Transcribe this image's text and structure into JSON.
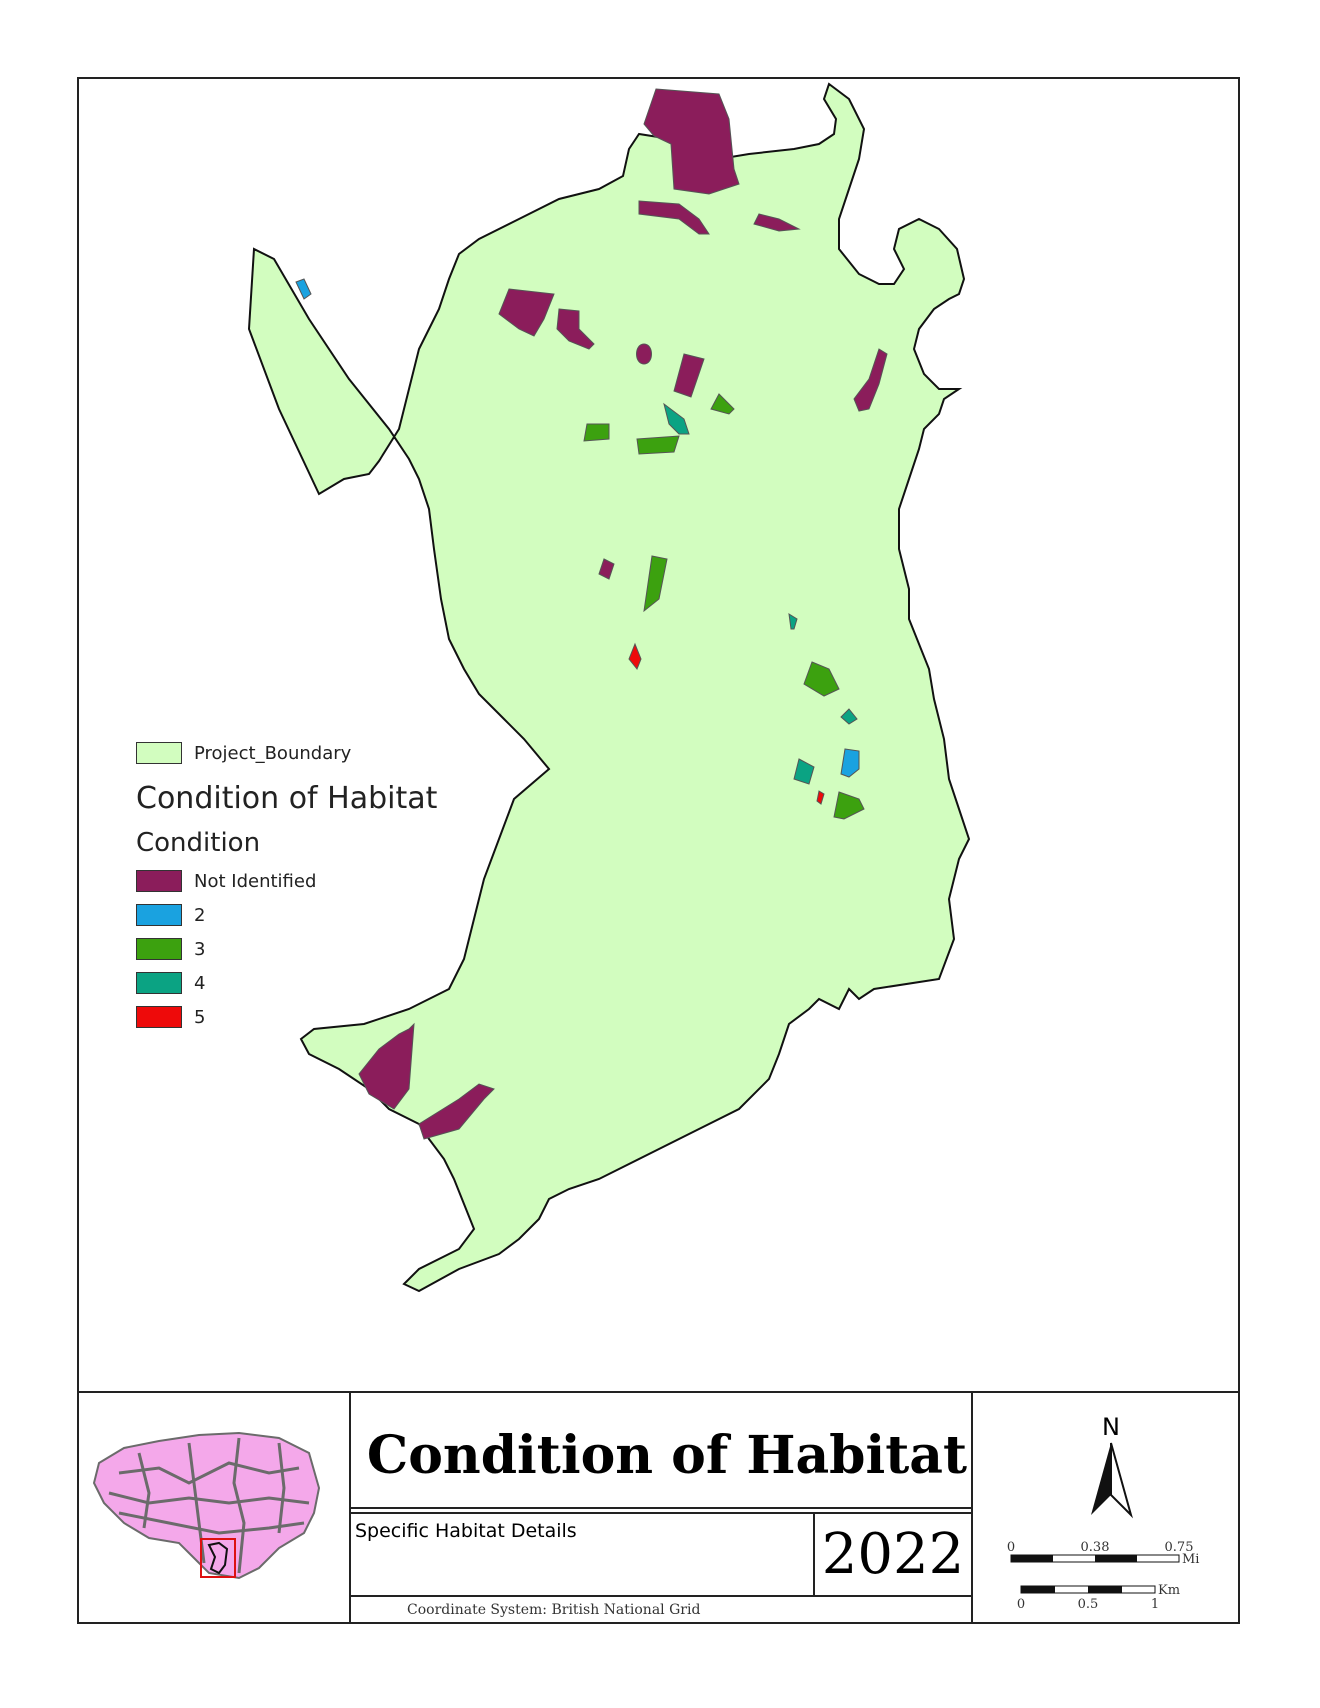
{
  "map": {
    "title": "Condition of Habitat",
    "subtitle": "Specific Habitat Details",
    "year": "2022",
    "coordinate_system": "Coordinate System: British National Grid",
    "north_label": "N",
    "scale_mi": {
      "ticks": [
        "0",
        "0.38",
        "0.75"
      ],
      "unit": "Mi"
    },
    "scale_km": {
      "ticks": [
        "0",
        "0.5",
        "1"
      ],
      "unit": "Km"
    }
  },
  "legend": {
    "boundary_label": "Project_Boundary",
    "boundary_color": "#d2fdbf",
    "title": "Condition of Habitat",
    "subtitle": "Condition",
    "items": [
      {
        "label": "Not Identified",
        "color": "#8b1d5b"
      },
      {
        "label": "2",
        "color": "#1aa2e0"
      },
      {
        "label": "3",
        "color": "#3ca10f"
      },
      {
        "label": "4",
        "color": "#0ba383"
      },
      {
        "label": "5",
        "color": "#ee0a0a"
      }
    ]
  },
  "colors": {
    "inset_region": "#f4a8ea",
    "inset_lines": "#6b6b6b",
    "inset_highlight": "#dd1111"
  }
}
